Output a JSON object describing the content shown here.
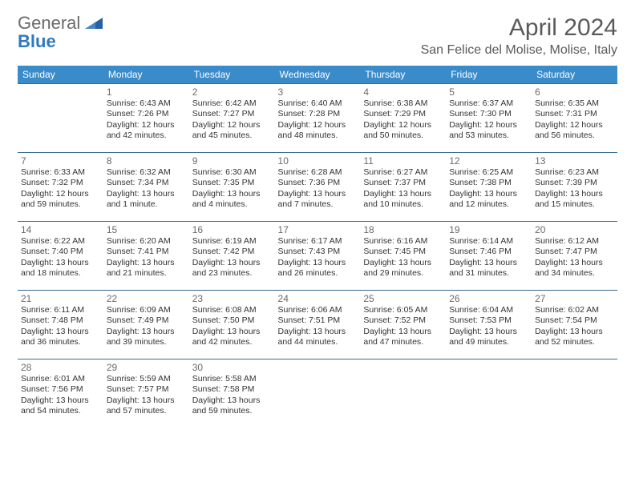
{
  "brand": {
    "part1": "General",
    "part2": "Blue",
    "color_general": "#6a6a6a",
    "color_blue": "#2f7abf",
    "shape_color": "#2860a5"
  },
  "title": "April 2024",
  "location": "San Felice del Molise, Molise, Italy",
  "theme": {
    "header_bg": "#3a8bca",
    "header_text": "#ffffff",
    "cell_border": "#3a6a90",
    "page_bg": "#ffffff",
    "text_color": "#333333",
    "muted_text": "#6a6a6a",
    "title_fontsize": 30,
    "location_fontsize": 16,
    "dayhead_fontsize": 12,
    "body_fontsize": 10.5
  },
  "day_headers": [
    "Sunday",
    "Monday",
    "Tuesday",
    "Wednesday",
    "Thursday",
    "Friday",
    "Saturday"
  ],
  "weeks": [
    [
      {
        "n": "",
        "sr": "",
        "ss": "",
        "dl": ""
      },
      {
        "n": "1",
        "sr": "Sunrise: 6:43 AM",
        "ss": "Sunset: 7:26 PM",
        "dl": "Daylight: 12 hours and 42 minutes."
      },
      {
        "n": "2",
        "sr": "Sunrise: 6:42 AM",
        "ss": "Sunset: 7:27 PM",
        "dl": "Daylight: 12 hours and 45 minutes."
      },
      {
        "n": "3",
        "sr": "Sunrise: 6:40 AM",
        "ss": "Sunset: 7:28 PM",
        "dl": "Daylight: 12 hours and 48 minutes."
      },
      {
        "n": "4",
        "sr": "Sunrise: 6:38 AM",
        "ss": "Sunset: 7:29 PM",
        "dl": "Daylight: 12 hours and 50 minutes."
      },
      {
        "n": "5",
        "sr": "Sunrise: 6:37 AM",
        "ss": "Sunset: 7:30 PM",
        "dl": "Daylight: 12 hours and 53 minutes."
      },
      {
        "n": "6",
        "sr": "Sunrise: 6:35 AM",
        "ss": "Sunset: 7:31 PM",
        "dl": "Daylight: 12 hours and 56 minutes."
      }
    ],
    [
      {
        "n": "7",
        "sr": "Sunrise: 6:33 AM",
        "ss": "Sunset: 7:32 PM",
        "dl": "Daylight: 12 hours and 59 minutes."
      },
      {
        "n": "8",
        "sr": "Sunrise: 6:32 AM",
        "ss": "Sunset: 7:34 PM",
        "dl": "Daylight: 13 hours and 1 minute."
      },
      {
        "n": "9",
        "sr": "Sunrise: 6:30 AM",
        "ss": "Sunset: 7:35 PM",
        "dl": "Daylight: 13 hours and 4 minutes."
      },
      {
        "n": "10",
        "sr": "Sunrise: 6:28 AM",
        "ss": "Sunset: 7:36 PM",
        "dl": "Daylight: 13 hours and 7 minutes."
      },
      {
        "n": "11",
        "sr": "Sunrise: 6:27 AM",
        "ss": "Sunset: 7:37 PM",
        "dl": "Daylight: 13 hours and 10 minutes."
      },
      {
        "n": "12",
        "sr": "Sunrise: 6:25 AM",
        "ss": "Sunset: 7:38 PM",
        "dl": "Daylight: 13 hours and 12 minutes."
      },
      {
        "n": "13",
        "sr": "Sunrise: 6:23 AM",
        "ss": "Sunset: 7:39 PM",
        "dl": "Daylight: 13 hours and 15 minutes."
      }
    ],
    [
      {
        "n": "14",
        "sr": "Sunrise: 6:22 AM",
        "ss": "Sunset: 7:40 PM",
        "dl": "Daylight: 13 hours and 18 minutes."
      },
      {
        "n": "15",
        "sr": "Sunrise: 6:20 AM",
        "ss": "Sunset: 7:41 PM",
        "dl": "Daylight: 13 hours and 21 minutes."
      },
      {
        "n": "16",
        "sr": "Sunrise: 6:19 AM",
        "ss": "Sunset: 7:42 PM",
        "dl": "Daylight: 13 hours and 23 minutes."
      },
      {
        "n": "17",
        "sr": "Sunrise: 6:17 AM",
        "ss": "Sunset: 7:43 PM",
        "dl": "Daylight: 13 hours and 26 minutes."
      },
      {
        "n": "18",
        "sr": "Sunrise: 6:16 AM",
        "ss": "Sunset: 7:45 PM",
        "dl": "Daylight: 13 hours and 29 minutes."
      },
      {
        "n": "19",
        "sr": "Sunrise: 6:14 AM",
        "ss": "Sunset: 7:46 PM",
        "dl": "Daylight: 13 hours and 31 minutes."
      },
      {
        "n": "20",
        "sr": "Sunrise: 6:12 AM",
        "ss": "Sunset: 7:47 PM",
        "dl": "Daylight: 13 hours and 34 minutes."
      }
    ],
    [
      {
        "n": "21",
        "sr": "Sunrise: 6:11 AM",
        "ss": "Sunset: 7:48 PM",
        "dl": "Daylight: 13 hours and 36 minutes."
      },
      {
        "n": "22",
        "sr": "Sunrise: 6:09 AM",
        "ss": "Sunset: 7:49 PM",
        "dl": "Daylight: 13 hours and 39 minutes."
      },
      {
        "n": "23",
        "sr": "Sunrise: 6:08 AM",
        "ss": "Sunset: 7:50 PM",
        "dl": "Daylight: 13 hours and 42 minutes."
      },
      {
        "n": "24",
        "sr": "Sunrise: 6:06 AM",
        "ss": "Sunset: 7:51 PM",
        "dl": "Daylight: 13 hours and 44 minutes."
      },
      {
        "n": "25",
        "sr": "Sunrise: 6:05 AM",
        "ss": "Sunset: 7:52 PM",
        "dl": "Daylight: 13 hours and 47 minutes."
      },
      {
        "n": "26",
        "sr": "Sunrise: 6:04 AM",
        "ss": "Sunset: 7:53 PM",
        "dl": "Daylight: 13 hours and 49 minutes."
      },
      {
        "n": "27",
        "sr": "Sunrise: 6:02 AM",
        "ss": "Sunset: 7:54 PM",
        "dl": "Daylight: 13 hours and 52 minutes."
      }
    ],
    [
      {
        "n": "28",
        "sr": "Sunrise: 6:01 AM",
        "ss": "Sunset: 7:56 PM",
        "dl": "Daylight: 13 hours and 54 minutes."
      },
      {
        "n": "29",
        "sr": "Sunrise: 5:59 AM",
        "ss": "Sunset: 7:57 PM",
        "dl": "Daylight: 13 hours and 57 minutes."
      },
      {
        "n": "30",
        "sr": "Sunrise: 5:58 AM",
        "ss": "Sunset: 7:58 PM",
        "dl": "Daylight: 13 hours and 59 minutes."
      },
      {
        "n": "",
        "sr": "",
        "ss": "",
        "dl": ""
      },
      {
        "n": "",
        "sr": "",
        "ss": "",
        "dl": ""
      },
      {
        "n": "",
        "sr": "",
        "ss": "",
        "dl": ""
      },
      {
        "n": "",
        "sr": "",
        "ss": "",
        "dl": ""
      }
    ]
  ]
}
